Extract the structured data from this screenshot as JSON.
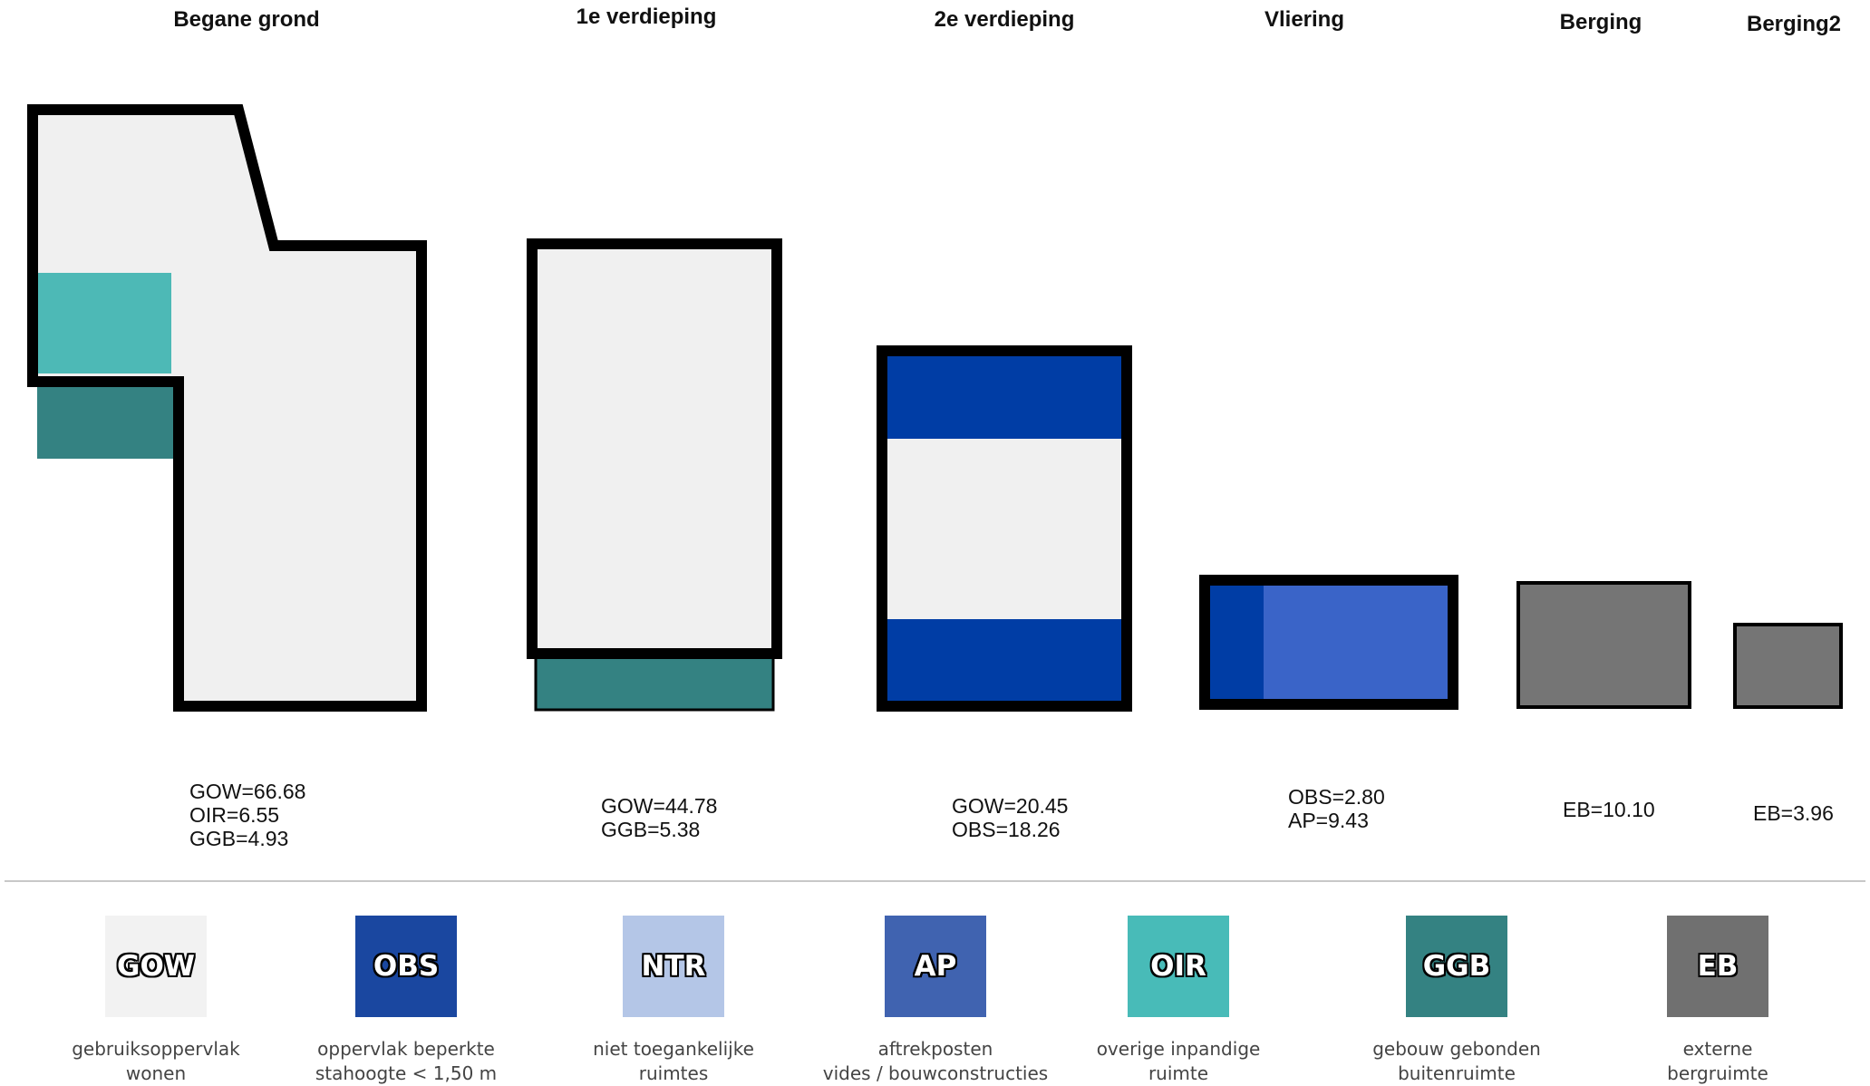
{
  "colors": {
    "GOW": "#f0f0f0",
    "OBS": "#003da5",
    "OBS_light": "#3a64c8",
    "NTR": "#b4c6e7",
    "AP": "#4063b8",
    "OIR": "#4db9b6",
    "GGB": "#348282",
    "EB": "#757575",
    "outline": "#000000"
  },
  "floors": [
    {
      "title": "Begane grond",
      "metrics": [
        "GOW=66.68",
        "OIR=6.55",
        "GGB=4.93"
      ]
    },
    {
      "title": "1e verdieping",
      "metrics": [
        "GOW=44.78",
        "GGB=5.38"
      ]
    },
    {
      "title": "2e verdieping",
      "metrics": [
        "GOW=20.45",
        "OBS=18.26"
      ]
    },
    {
      "title": "Vliering",
      "metrics": [
        "OBS=2.80",
        "AP=9.43"
      ]
    },
    {
      "title": "Berging",
      "metrics": [
        "EB=10.10"
      ]
    },
    {
      "title": "Berging2",
      "metrics": [
        "EB=3.96"
      ]
    }
  ],
  "legend": [
    {
      "code": "GOW",
      "color": "#f2f2f2",
      "desc": [
        "gebruiksoppervlak",
        "wonen"
      ]
    },
    {
      "code": "OBS",
      "color": "#1a47a0",
      "desc": [
        "oppervlak beperkte",
        "stahoogte < 1,50 m"
      ]
    },
    {
      "code": "NTR",
      "color": "#b4c6e7",
      "desc": [
        "niet toegankelijke",
        "ruimtes"
      ]
    },
    {
      "code": "AP",
      "color": "#4063b0",
      "desc": [
        "aftrekposten",
        "vides / bouwconstructies"
      ]
    },
    {
      "code": "OIR",
      "color": "#48bbb8",
      "desc": [
        "overige inpandige",
        "ruimte"
      ]
    },
    {
      "code": "GGB",
      "color": "#348282",
      "desc": [
        "gebouw gebonden",
        "buitenruimte"
      ]
    },
    {
      "code": "EB",
      "color": "#707070",
      "desc": [
        "externe",
        "bergruimte"
      ]
    }
  ]
}
